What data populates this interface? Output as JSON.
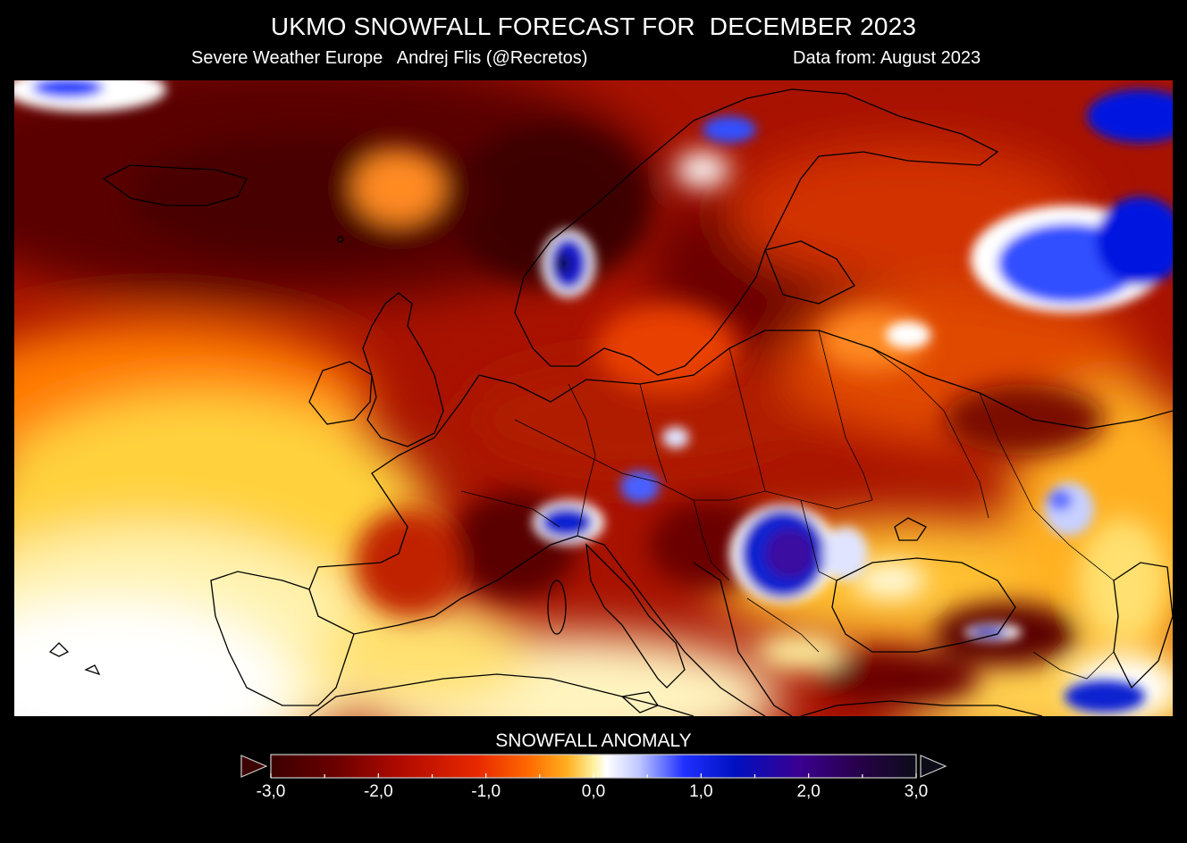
{
  "header": {
    "title": "UKMO SNOWFALL FORECAST FOR  DECEMBER 2023",
    "credit": "Severe Weather Europe   Andrej Flis (@Recretos)",
    "data_from": "Data from: August 2023"
  },
  "map": {
    "region": "Europe",
    "variable": "snowfall anomaly",
    "month": "December 2023"
  },
  "legend": {
    "title": "SNOWFALL ANOMALY",
    "min": -3.0,
    "max": 3.0,
    "tick_labels": [
      "-3,0",
      "-2,0",
      "-1,0",
      "0,0",
      "1,0",
      "2,0",
      "3,0"
    ],
    "tick_values": [
      -3,
      -2,
      -1,
      0,
      1,
      2,
      3
    ],
    "colors": {
      "strong_negative": "#3d0000",
      "negative": "#c01800",
      "mild_negative": "#ff6000",
      "slight_negative": "#ffd040",
      "zero": "#ffffff",
      "positive": "#0010d8",
      "strong_positive": "#3a0090",
      "very_strong_positive": "#101020"
    }
  }
}
